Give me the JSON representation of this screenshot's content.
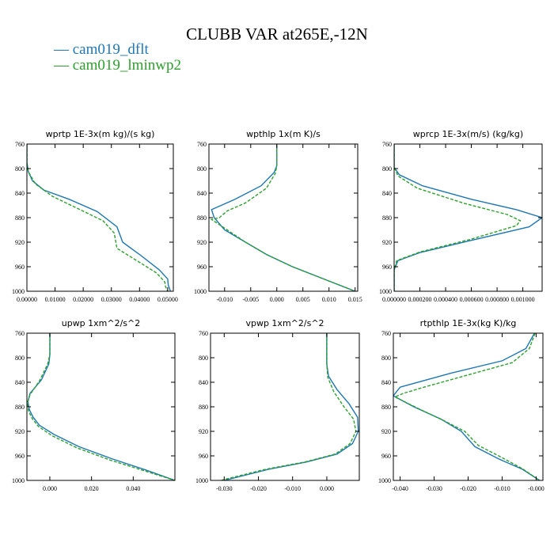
{
  "figure": {
    "title": "CLUBB VAR at265E,-12N"
  },
  "colors": {
    "cam019_dflt": "#1f77b4",
    "cam019_lminwp2": "#2ca02c"
  },
  "legend": [
    {
      "label": "— cam019_dflt",
      "color": "#1f77b4"
    },
    {
      "label": "— cam019_lminwp2",
      "color": "#2ca02c"
    }
  ],
  "chart_data": [
    {
      "type": "line",
      "title": "wprtp  1E-3x(m kg)/(s kg)",
      "xlim": [
        0,
        0.052
      ],
      "ylim": [
        760,
        1000
      ],
      "y_inverted": true,
      "xticks": [
        "0.00000",
        "0.01000",
        "0.02000",
        "0.03000",
        "0.04000",
        "0.05000"
      ],
      "xtick_values": [
        0,
        0.01,
        0.02,
        0.03,
        0.04,
        0.05
      ],
      "yticks": [
        "760",
        "800",
        "840",
        "880",
        "920",
        "960",
        "1000"
      ],
      "ytick_values": [
        760,
        800,
        840,
        880,
        920,
        960,
        1000
      ],
      "series": [
        {
          "name": "cam019_dflt",
          "x": [
            0,
            0,
            0.0005,
            0.002,
            0.006,
            0.015,
            0.025,
            0.032,
            0.034,
            0.04,
            0.047,
            0.05,
            0.0502,
            0.051
          ],
          "y": [
            760,
            790,
            805,
            820,
            835,
            850,
            870,
            895,
            920,
            940,
            965,
            980,
            990,
            1000
          ]
        },
        {
          "name": "cam019_lminwp2",
          "x": [
            0,
            0,
            0.0005,
            0.003,
            0.009,
            0.018,
            0.027,
            0.031,
            0.032,
            0.039,
            0.046,
            0.049,
            0.0492,
            0.05
          ],
          "y": [
            760,
            790,
            805,
            825,
            845,
            865,
            885,
            905,
            930,
            950,
            970,
            985,
            992,
            1000
          ]
        }
      ]
    },
    {
      "type": "line",
      "title": "wpthlp  1x(m K)/s",
      "xlim": [
        -0.013,
        0.0155
      ],
      "ylim": [
        760,
        1000
      ],
      "y_inverted": true,
      "xticks": [
        "-0.010",
        "-0.005",
        "0.000",
        "0.005",
        "0.010",
        "0.015"
      ],
      "xtick_values": [
        -0.01,
        -0.005,
        0,
        0.005,
        0.01,
        0.015
      ],
      "yticks": [
        "760",
        "800",
        "840",
        "880",
        "920",
        "960",
        "1000"
      ],
      "ytick_values": [
        760,
        800,
        840,
        880,
        920,
        960,
        1000
      ],
      "series": [
        {
          "name": "cam019_dflt",
          "x": [
            0,
            0,
            -0.0005,
            -0.003,
            -0.008,
            -0.0125,
            -0.012,
            -0.01,
            -0.006,
            -0.002,
            0.003,
            0.009,
            0.015
          ],
          "y": [
            760,
            795,
            806,
            828,
            850,
            867,
            880,
            900,
            920,
            940,
            960,
            980,
            1000
          ]
        },
        {
          "name": "cam019_lminwp2",
          "x": [
            0,
            0,
            -0.0003,
            -0.002,
            -0.006,
            -0.0095,
            -0.011,
            -0.0125,
            -0.0095,
            -0.006,
            -0.002,
            0.003,
            0.009,
            0.015
          ],
          "y": [
            760,
            795,
            808,
            832,
            856,
            869,
            880,
            883,
            900,
            920,
            940,
            960,
            980,
            1000
          ]
        }
      ]
    },
    {
      "type": "line",
      "title": "wprcp  1E-3x(m/s) (kg/kg)",
      "xlim": [
        0,
        0.00115
      ],
      "ylim": [
        760,
        1000
      ],
      "y_inverted": true,
      "xticks": [
        "0.000000",
        "0.000200",
        "0.000400",
        "0.000600",
        "0.000800",
        "0.001000"
      ],
      "xtick_values": [
        0,
        0.0002,
        0.0004,
        0.0006,
        0.0008,
        0.001
      ],
      "yticks": [
        "760",
        "800",
        "840",
        "880",
        "920",
        "960",
        "1000"
      ],
      "ytick_values": [
        760,
        800,
        840,
        880,
        920,
        960,
        1000
      ],
      "series": [
        {
          "name": "cam019_dflt",
          "x": [
            0,
            0,
            4e-05,
            0.00022,
            0.0006,
            0.00095,
            0.00115,
            0.00105,
            0.0006,
            0.0002,
            3e-05,
            0,
            0
          ],
          "y": [
            760,
            798,
            810,
            828,
            850,
            867,
            880,
            895,
            917,
            937,
            950,
            965,
            1000
          ]
        },
        {
          "name": "cam019_lminwp2",
          "x": [
            0,
            0,
            3e-05,
            0.00018,
            0.00055,
            0.00088,
            0.00098,
            0.00095,
            0.0006,
            0.0002,
            2e-05,
            0,
            0
          ],
          "y": [
            760,
            798,
            812,
            832,
            857,
            875,
            885,
            893,
            915,
            936,
            950,
            965,
            1000
          ]
        }
      ]
    },
    {
      "type": "line",
      "title": "upwp  1xm^2/s^2",
      "xlim": [
        -0.011,
        0.06
      ],
      "ylim": [
        760,
        1000
      ],
      "y_inverted": true,
      "xticks": [
        "0.000",
        "0.020",
        "0.040"
      ],
      "xtick_values": [
        0,
        0.02,
        0.04
      ],
      "yticks": [
        "760",
        "800",
        "840",
        "880",
        "920",
        "960",
        "1000"
      ],
      "ytick_values": [
        760,
        800,
        840,
        880,
        920,
        960,
        1000
      ],
      "series": [
        {
          "name": "cam019_dflt",
          "x": [
            0.0,
            0.0,
            -0.0005,
            -0.004,
            -0.0095,
            -0.0105,
            -0.0098,
            -0.008,
            -0.005,
            0.002,
            0.014,
            0.03,
            0.046,
            0.06
          ],
          "y": [
            760,
            795,
            810,
            836,
            858,
            872,
            885,
            897,
            910,
            925,
            945,
            965,
            983,
            1000
          ]
        },
        {
          "name": "cam019_lminwp2",
          "x": [
            0.0,
            0.0,
            -0.001,
            -0.005,
            -0.0095,
            -0.0108,
            -0.0102,
            -0.0085,
            -0.0055,
            0.001,
            0.013,
            0.029,
            0.045,
            0.06
          ],
          "y": [
            760,
            795,
            810,
            838,
            860,
            874,
            887,
            899,
            912,
            927,
            947,
            967,
            984,
            1000
          ]
        }
      ]
    },
    {
      "type": "line",
      "title": "vpwp  1xm^2/s^2",
      "xlim": [
        -0.034,
        0.0095
      ],
      "ylim": [
        760,
        1000
      ],
      "y_inverted": true,
      "xticks": [
        "-0.030",
        "-0.020",
        "-0.010",
        "0.000"
      ],
      "xtick_values": [
        -0.03,
        -0.02,
        -0.01,
        0
      ],
      "yticks": [
        "760",
        "800",
        "840",
        "880",
        "920",
        "960",
        "1000"
      ],
      "ytick_values": [
        760,
        800,
        840,
        880,
        920,
        960,
        1000
      ],
      "series": [
        {
          "name": "cam019_dflt",
          "x": [
            0,
            0,
            0.0005,
            0.003,
            0.0065,
            0.009,
            0.0092,
            0.0075,
            0.003,
            -0.006,
            -0.017,
            -0.03
          ],
          "y": [
            760,
            810,
            830,
            852,
            875,
            897,
            920,
            940,
            957,
            970,
            982,
            1000
          ]
        },
        {
          "name": "cam019_lminwp2",
          "x": [
            0,
            0,
            0.0003,
            0.002,
            0.005,
            0.0078,
            0.0085,
            0.0068,
            0.0025,
            -0.0065,
            -0.018,
            -0.031
          ],
          "y": [
            760,
            810,
            832,
            855,
            880,
            900,
            920,
            940,
            957,
            970,
            982,
            1000
          ]
        }
      ]
    },
    {
      "type": "line",
      "title": "rtpthlp  1E-3x(kg K)/kg",
      "xlim": [
        -0.042,
        0.002
      ],
      "ylim": [
        760,
        1000
      ],
      "y_inverted": true,
      "xticks": [
        "-0.040",
        "-0.030",
        "-0.020",
        "-0.010",
        "-0.000"
      ],
      "xtick_values": [
        -0.04,
        -0.03,
        -0.02,
        -0.01,
        0
      ],
      "yticks": [
        "760",
        "800",
        "840",
        "880",
        "920",
        "960",
        "1000"
      ],
      "ytick_values": [
        760,
        800,
        840,
        880,
        920,
        960,
        1000
      ],
      "series": [
        {
          "name": "cam019_dflt",
          "x": [
            -0.0005,
            -0.003,
            -0.01,
            -0.025,
            -0.04,
            -0.041,
            -0.042,
            -0.036,
            -0.028,
            -0.022,
            -0.018,
            -0.011,
            -0.004,
            0.001
          ],
          "y": [
            760,
            785,
            805,
            825,
            848,
            855,
            862,
            880,
            900,
            920,
            945,
            965,
            982,
            1000
          ]
        },
        {
          "name": "cam019_lminwp2",
          "x": [
            -0.0003,
            -0.002,
            -0.007,
            -0.02,
            -0.033,
            -0.039,
            -0.0415,
            -0.035,
            -0.027,
            -0.021,
            -0.017,
            -0.01,
            -0.004,
            0.001
          ],
          "y": [
            760,
            785,
            808,
            828,
            848,
            858,
            864,
            882,
            903,
            920,
            943,
            963,
            981,
            1000
          ]
        }
      ]
    }
  ]
}
